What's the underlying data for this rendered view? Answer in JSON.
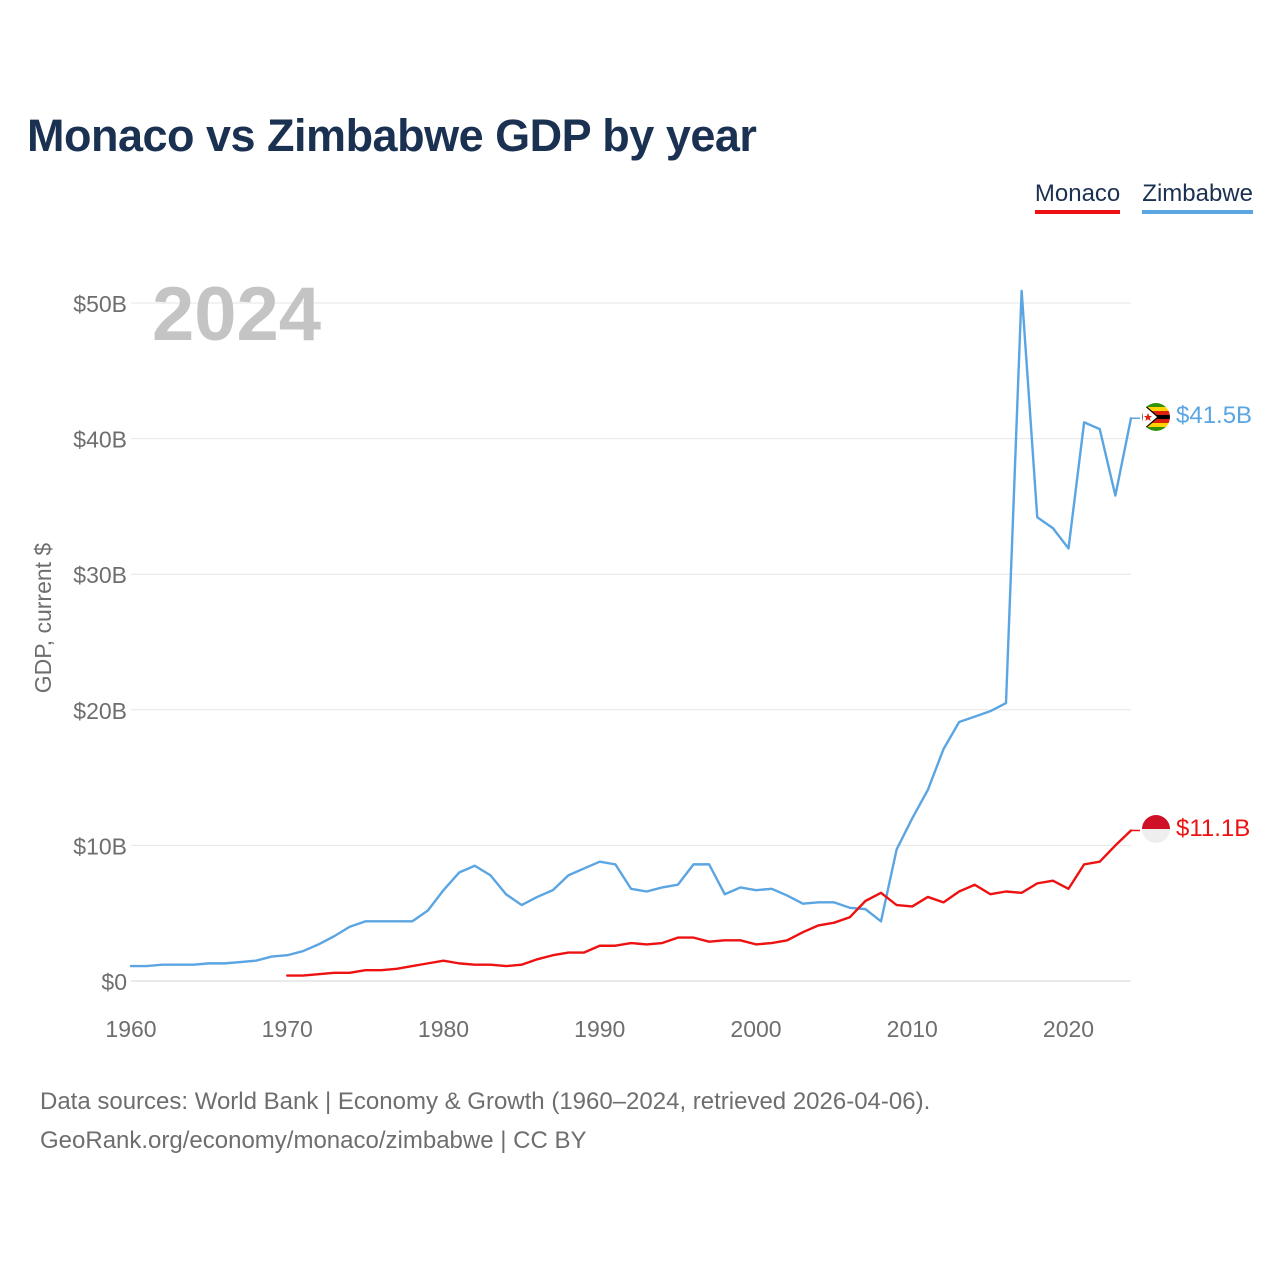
{
  "title": "Monaco vs Zimbabwe GDP by year",
  "legend": {
    "monaco": "Monaco",
    "zimbabwe": "Zimbabwe"
  },
  "colors": {
    "monaco": "#ee1111",
    "zimbabwe": "#5aa5e2",
    "title": "#1b3152",
    "axis_text": "#6e6e6e",
    "year_watermark": "#c4c4c4",
    "grid": "#e6e6e6"
  },
  "sources": {
    "line1": "Data sources: World Bank | Economy & Growth (1960–2024, retrieved 2026-04-06).",
    "line2": "GeoRank.org/economy/monaco/zimbabwe | CC BY"
  },
  "chart_data": {
    "type": "line",
    "title": "Monaco vs Zimbabwe GDP by year",
    "xlabel": "",
    "ylabel": "GDP, current $",
    "year_watermark": "2024",
    "xlim": [
      1960,
      2024
    ],
    "ylim": [
      0,
      50
    ],
    "x_ticks": [
      1960,
      1970,
      1980,
      1990,
      2000,
      2010,
      2020
    ],
    "y_ticks": [
      0,
      10,
      20,
      30,
      40,
      50
    ],
    "y_tick_labels": [
      "$0",
      "$10B",
      "$20B",
      "$30B",
      "$40B",
      "$50B"
    ],
    "grid": true,
    "units": "billions of current US$",
    "series": [
      {
        "name": "Monaco",
        "end_label": "$11.1B",
        "flag_icon": "monaco-flag-icon",
        "start_year": 1970,
        "values": [
          0.4,
          0.4,
          0.5,
          0.6,
          0.6,
          0.8,
          0.8,
          0.9,
          1.1,
          1.3,
          1.5,
          1.3,
          1.2,
          1.2,
          1.1,
          1.2,
          1.6,
          1.9,
          2.1,
          2.1,
          2.6,
          2.6,
          2.8,
          2.7,
          2.8,
          3.2,
          3.2,
          2.9,
          3.0,
          3.0,
          2.7,
          2.8,
          3.0,
          3.6,
          4.1,
          4.3,
          4.7,
          5.9,
          6.5,
          5.6,
          5.5,
          6.2,
          5.8,
          6.6,
          7.1,
          6.4,
          6.6,
          6.5,
          7.2,
          7.4,
          6.8,
          8.6,
          8.8,
          10.0,
          11.1
        ]
      },
      {
        "name": "Zimbabwe",
        "end_label": "$41.5B",
        "flag_icon": "zimbabwe-flag-icon",
        "start_year": 1960,
        "values": [
          1.1,
          1.1,
          1.2,
          1.2,
          1.2,
          1.3,
          1.3,
          1.4,
          1.5,
          1.8,
          1.9,
          2.2,
          2.7,
          3.3,
          4.0,
          4.4,
          4.4,
          4.4,
          4.4,
          5.2,
          6.7,
          8.0,
          8.5,
          7.8,
          6.4,
          5.6,
          6.2,
          6.7,
          7.8,
          8.3,
          8.8,
          8.6,
          6.8,
          6.6,
          6.9,
          7.1,
          8.6,
          8.6,
          6.4,
          6.9,
          6.7,
          6.8,
          6.3,
          5.7,
          5.8,
          5.8,
          5.4,
          5.3,
          4.4,
          9.7,
          12.0,
          14.1,
          17.1,
          19.1,
          19.5,
          19.9,
          20.5,
          50.9,
          34.2,
          33.4,
          31.9,
          41.2,
          40.7,
          35.8,
          41.5
        ]
      }
    ]
  }
}
